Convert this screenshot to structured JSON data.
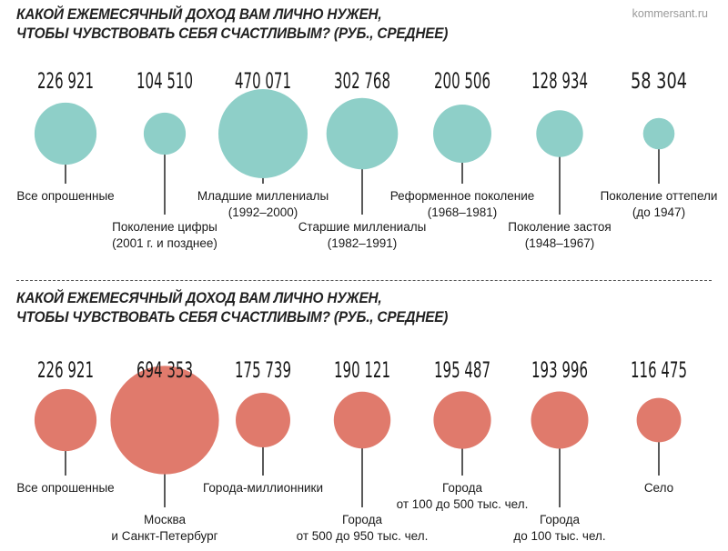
{
  "source": "kommersant.ru",
  "chart_data": [
    {
      "type": "bubble",
      "title_lines": [
        "КАКОЙ ЕЖЕМЕСЯЧНЫЙ ДОХОД ВАМ ЛИЧНО НУЖЕН,",
        "ЧТОБЫ ЧУВСТВОВАТЬ СЕБЯ СЧАСТЛИВЫМ? (РУБ., СРЕДНЕЕ)"
      ],
      "color": "#8ecfc8",
      "categories": [
        {
          "display": "226 921",
          "value": 226921,
          "label": [
            "Все опрошенные"
          ]
        },
        {
          "display": "104 510",
          "value": 104510,
          "label": [
            "Поколение цифры",
            "(2001 г. и позднее)"
          ]
        },
        {
          "display": "470 071",
          "value": 470071,
          "label": [
            "Младшие миллениалы",
            "(1992–2000)"
          ]
        },
        {
          "display": "302 768",
          "value": 302768,
          "label": [
            "Старшие миллениалы",
            "(1982–1991)"
          ]
        },
        {
          "display": "200 506",
          "value": 200506,
          "label": [
            "Реформенное поколение",
            "(1968–1981)"
          ]
        },
        {
          "display": "128 934",
          "value": 128934,
          "label": [
            "Поколение застоя",
            "(1948–1967)"
          ]
        },
        {
          "display": "58 304",
          "value": 58304,
          "label": [
            "Поколение оттепели",
            "(до 1947)"
          ]
        }
      ]
    },
    {
      "type": "bubble",
      "title_lines": [
        "КАКОЙ ЕЖЕМЕСЯЧНЫЙ ДОХОД ВАМ ЛИЧНО НУЖЕН,",
        "ЧТОБЫ ЧУВСТВОВАТЬ СЕБЯ СЧАСТЛИВЫМ? (РУБ., СРЕДНЕЕ)"
      ],
      "color": "#e07a6c",
      "categories": [
        {
          "display": "226 921",
          "value": 226921,
          "label": [
            "Все опрошенные"
          ]
        },
        {
          "display": "694 353",
          "value": 694353,
          "label": [
            "Москва",
            "и Санкт-Петербург"
          ]
        },
        {
          "display": "175 739",
          "value": 175739,
          "label": [
            "Города-миллионники"
          ]
        },
        {
          "display": "190 121",
          "value": 190121,
          "label": [
            "Города",
            "от 500 до 950 тыс. чел."
          ]
        },
        {
          "display": "195 487",
          "value": 195487,
          "label": [
            "Города",
            "от 100 до 500 тыс. чел."
          ]
        },
        {
          "display": "193 996",
          "value": 193996,
          "label": [
            "Города",
            "до 100 тыс. чел."
          ]
        },
        {
          "display": "116 475",
          "value": 116475,
          "label": [
            "Село"
          ]
        }
      ]
    }
  ]
}
